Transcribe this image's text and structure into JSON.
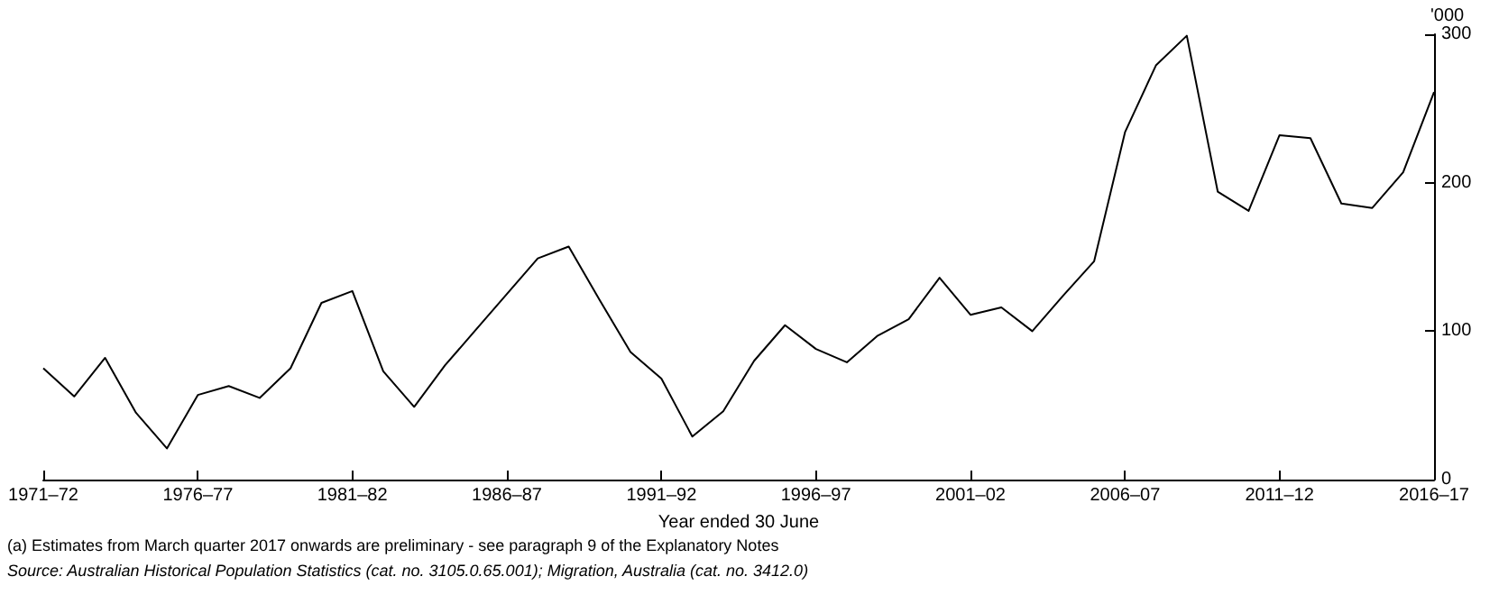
{
  "chart_data": {
    "type": "line",
    "xlabel": "Year ended 30 June",
    "ylabel": "'000",
    "categories": [
      "1971–72",
      null,
      null,
      null,
      null,
      "1976–77",
      null,
      null,
      null,
      null,
      "1981–82",
      null,
      null,
      null,
      null,
      "1986–87",
      null,
      null,
      null,
      null,
      "1991–92",
      null,
      null,
      null,
      null,
      "1996–97",
      null,
      null,
      null,
      null,
      "2001–02",
      null,
      null,
      null,
      null,
      "2006–07",
      null,
      null,
      null,
      null,
      "2011–12",
      null,
      null,
      null,
      null,
      "2016–17"
    ],
    "series": [
      {
        "color": "#000000",
        "values": [
          75,
          56,
          82,
          45,
          21,
          57,
          63,
          55,
          75,
          119,
          127,
          73,
          49,
          77,
          101,
          125,
          149,
          157,
          121,
          86,
          68,
          29,
          46,
          80,
          104,
          88,
          79,
          97,
          108,
          136,
          111,
          116,
          100,
          124,
          147,
          234,
          279,
          299,
          194,
          181,
          232,
          230,
          186,
          183,
          207,
          261
        ]
      }
    ],
    "ylim": [
      0,
      300
    ],
    "yticks": [
      0,
      100,
      200,
      300
    ],
    "grid": false,
    "marker": "none",
    "line_style": "solid",
    "annotations": [
      "(a) Estimates from March quarter 2017 onwards are preliminary - see paragraph 9 of the Explanatory Notes",
      "Source: Australian Historical Population Statistics (cat. no. 3105.0.65.001); Migration, Australia (cat. no. 3412.0)"
    ]
  }
}
